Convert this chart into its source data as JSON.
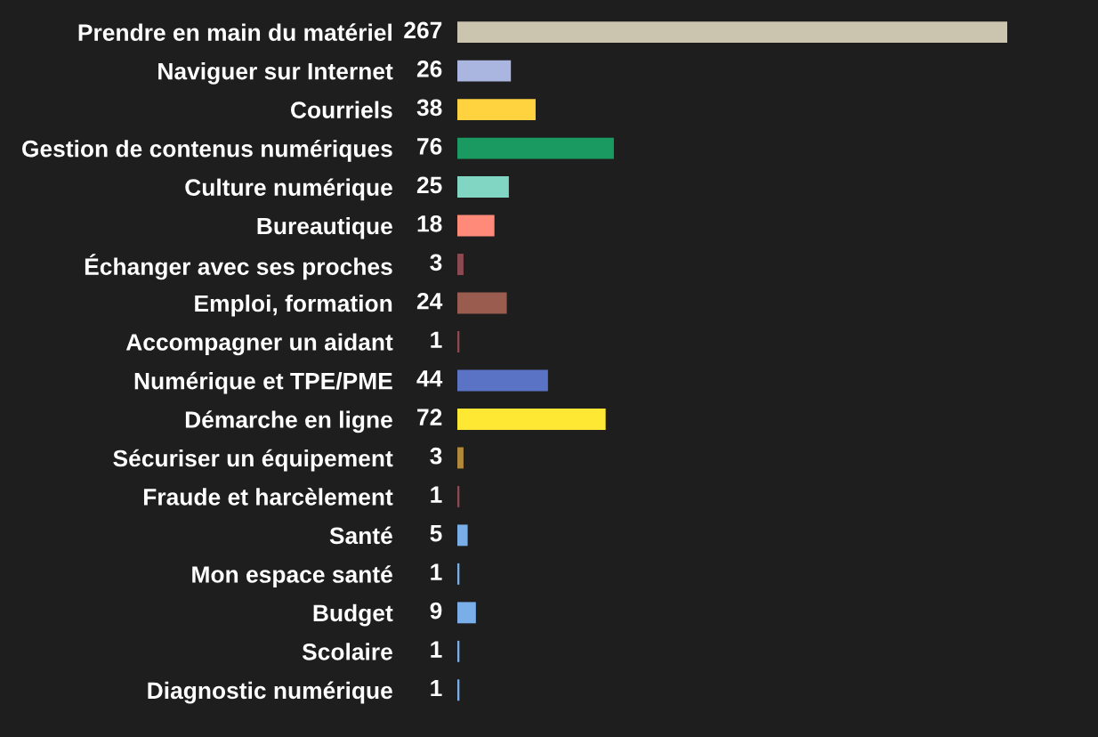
{
  "chart_data": {
    "type": "bar",
    "orientation": "horizontal",
    "data_labels": true,
    "categories": [
      "Prendre en main du matériel",
      "Naviguer sur Internet",
      "Courriels",
      "Gestion de contenus numériques",
      "Culture numérique",
      "Bureautique",
      "Échanger avec ses proches",
      "Emploi, formation",
      "Accompagner un aidant",
      "Numérique et TPE/PME",
      "Démarche en ligne",
      "Sécuriser un équipement",
      "Fraude et harcèlement",
      "Santé",
      "Mon espace santé",
      "Budget",
      "Scolaire",
      "Diagnostic numérique"
    ],
    "values": [
      267,
      26,
      38,
      76,
      25,
      18,
      3,
      24,
      1,
      44,
      72,
      3,
      1,
      5,
      1,
      9,
      1,
      1
    ],
    "colors": [
      "#cbc5b0",
      "#aab6e0",
      "#ffd23f",
      "#1a9960",
      "#80d6c3",
      "#ff8a7a",
      "#8b4a52",
      "#9a5c4e",
      "#8b4a52",
      "#5b73c4",
      "#ffe833",
      "#b08a3a",
      "#8b4a52",
      "#7aaee8",
      "#7aaee8",
      "#7aaee8",
      "#7aaee8",
      "#7aaee8"
    ],
    "grid": false,
    "legend": false
  }
}
